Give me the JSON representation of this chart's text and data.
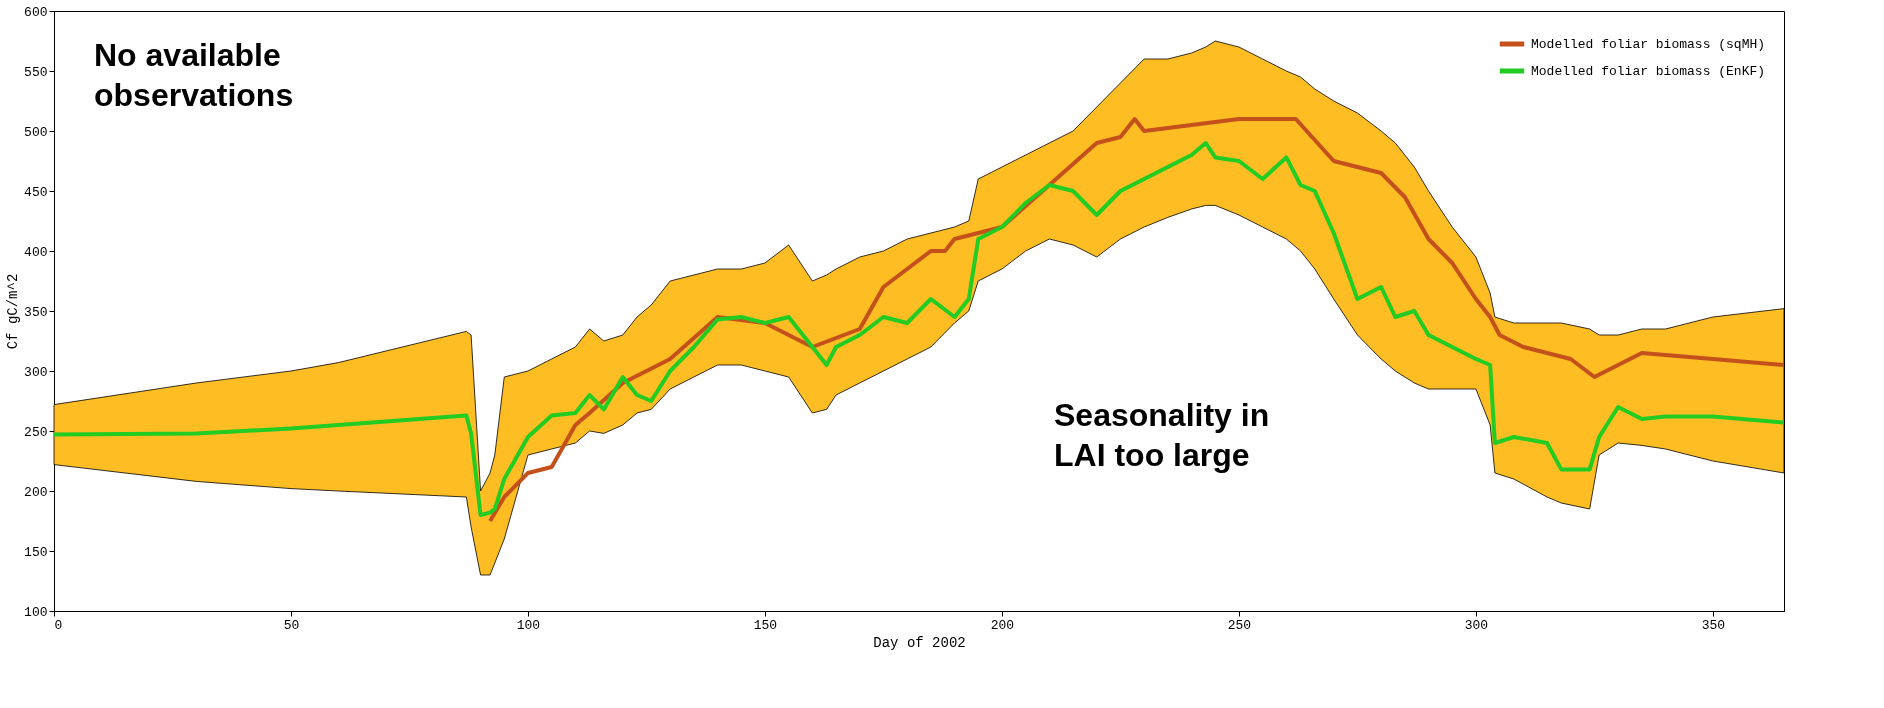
{
  "chart_data": {
    "type": "line",
    "xlabel": "Day of 2002",
    "ylabel": "Cf gC/m^2",
    "xlim": [
      0,
      365
    ],
    "xticks": [
      0,
      50,
      100,
      150,
      200,
      250,
      300,
      350
    ],
    "ylim": [
      100,
      600
    ],
    "yticks": [
      100,
      150,
      200,
      250,
      300,
      350,
      400,
      450,
      500,
      550,
      600
    ],
    "grid": false,
    "legend": "top right",
    "marker": "none",
    "line_style": "solid",
    "annotations": [
      "No available\nobservations",
      "Seasonality in\nLAI too large"
    ],
    "series": [
      {
        "name": "Modelled foliar biomass (sqMH)",
        "color": "#c4501c",
        "x": [
          92,
          95,
          100,
          105,
          110,
          113,
          120,
          130,
          140,
          150,
          160,
          170,
          175,
          180,
          185,
          188,
          190,
          195,
          200,
          210,
          220,
          225,
          228,
          230,
          240,
          250,
          262,
          270,
          280,
          285,
          290,
          295,
          300,
          303,
          305,
          310,
          320,
          325,
          330,
          335,
          350,
          365
        ],
        "values": [
          175,
          195,
          215,
          220,
          255,
          265,
          290,
          310,
          345,
          340,
          320,
          335,
          370,
          385,
          400,
          400,
          410,
          415,
          420,
          455,
          490,
          495,
          510,
          500,
          505,
          510,
          510,
          475,
          465,
          445,
          410,
          390,
          360,
          345,
          330,
          320,
          310,
          295,
          305,
          315,
          310,
          305
        ]
      },
      {
        "name": "Modelled foliar biomass (EnKF)",
        "color": "#22cc22",
        "x": [
          0,
          30,
          50,
          60,
          87,
          88,
          90,
          92,
          93,
          95,
          100,
          105,
          110,
          113,
          116,
          120,
          123,
          126,
          130,
          135,
          140,
          145,
          150,
          155,
          160,
          163,
          165,
          170,
          175,
          180,
          185,
          190,
          193,
          195,
          200,
          205,
          210,
          215,
          220,
          225,
          230,
          235,
          240,
          243,
          245,
          250,
          255,
          260,
          263,
          266,
          270,
          275,
          280,
          283,
          287,
          290,
          295,
          300,
          303,
          304,
          308,
          315,
          318,
          324,
          326,
          330,
          335,
          340,
          350,
          365
        ],
        "values": [
          247,
          248,
          252,
          255,
          263,
          248,
          180,
          182,
          185,
          210,
          245,
          263,
          265,
          280,
          268,
          295,
          280,
          275,
          300,
          320,
          343,
          345,
          340,
          345,
          320,
          305,
          320,
          330,
          345,
          340,
          360,
          345,
          360,
          410,
          420,
          440,
          455,
          450,
          430,
          450,
          460,
          470,
          480,
          490,
          478,
          475,
          460,
          478,
          455,
          450,
          415,
          360,
          370,
          345,
          350,
          330,
          320,
          310,
          305,
          240,
          245,
          240,
          218,
          218,
          245,
          270,
          260,
          262,
          262,
          257
        ],
        "lower": [
          222,
          208,
          202,
          200,
          195,
          170,
          130,
          130,
          140,
          160,
          230,
          235,
          240,
          250,
          248,
          255,
          265,
          268,
          285,
          295,
          305,
          305,
          300,
          295,
          265,
          268,
          280,
          290,
          300,
          310,
          320,
          340,
          350,
          375,
          385,
          400,
          410,
          405,
          395,
          410,
          420,
          428,
          435,
          438,
          438,
          430,
          420,
          410,
          400,
          385,
          360,
          330,
          310,
          300,
          290,
          285,
          285,
          285,
          255,
          215,
          210,
          195,
          190,
          185,
          230,
          240,
          238,
          235,
          225,
          215
        ],
        "upper": [
          272,
          290,
          300,
          307,
          333,
          330,
          200,
          215,
          230,
          295,
          300,
          310,
          320,
          335,
          325,
          330,
          345,
          355,
          375,
          380,
          385,
          385,
          390,
          405,
          375,
          380,
          385,
          395,
          400,
          410,
          415,
          420,
          425,
          460,
          470,
          480,
          490,
          500,
          520,
          540,
          560,
          560,
          565,
          570,
          575,
          570,
          560,
          550,
          545,
          535,
          525,
          515,
          500,
          490,
          470,
          450,
          420,
          395,
          365,
          345,
          340,
          340,
          340,
          335,
          330,
          330,
          335,
          335,
          345,
          352
        ]
      }
    ]
  }
}
